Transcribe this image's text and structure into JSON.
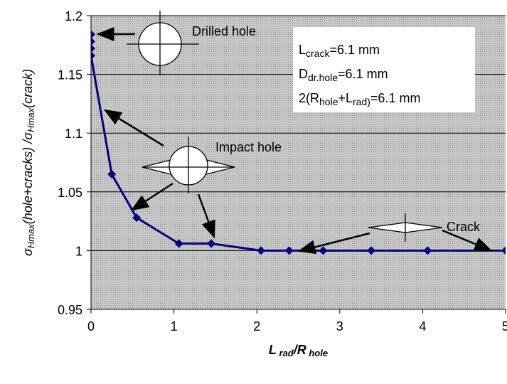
{
  "chart_data": {
    "type": "line",
    "x": [
      0,
      0,
      0,
      0,
      0.25,
      0.55,
      1.06,
      1.45,
      2.05,
      2.39,
      2.8,
      3.38,
      4.06,
      5
    ],
    "series": [
      {
        "color": "#000080",
        "values": [
          1.184,
          1.178,
          1.172,
          1.166,
          1.065,
          1.028,
          1.006,
          1.006,
          1.0,
          1.0,
          1.0,
          1.0,
          1.0,
          1.0
        ]
      }
    ],
    "xlim": [
      0,
      5
    ],
    "xticks": [
      0,
      1,
      2,
      3,
      4,
      5
    ],
    "ylim": [
      0.95,
      1.2
    ],
    "yticks": [
      0.95,
      1,
      1.05,
      1.1,
      1.15,
      1.2
    ],
    "grid": true,
    "xlabel": [
      "L",
      " rad",
      "/R",
      " hole"
    ],
    "ylabel": [
      "σ",
      "Hmax",
      "(hole+cracks) /σ",
      "Hmax",
      "(crack)"
    ],
    "annotations": [
      "Drilled hole",
      "Impact hole",
      "Crack"
    ],
    "info_box": [
      [
        "L",
        "crack",
        "=6.1 mm"
      ],
      [
        "D",
        "dr.hole",
        "=6.1 mm"
      ],
      [
        "2(R",
        "hole",
        "+L",
        "rad)",
        "=6.1 mm"
      ]
    ]
  }
}
